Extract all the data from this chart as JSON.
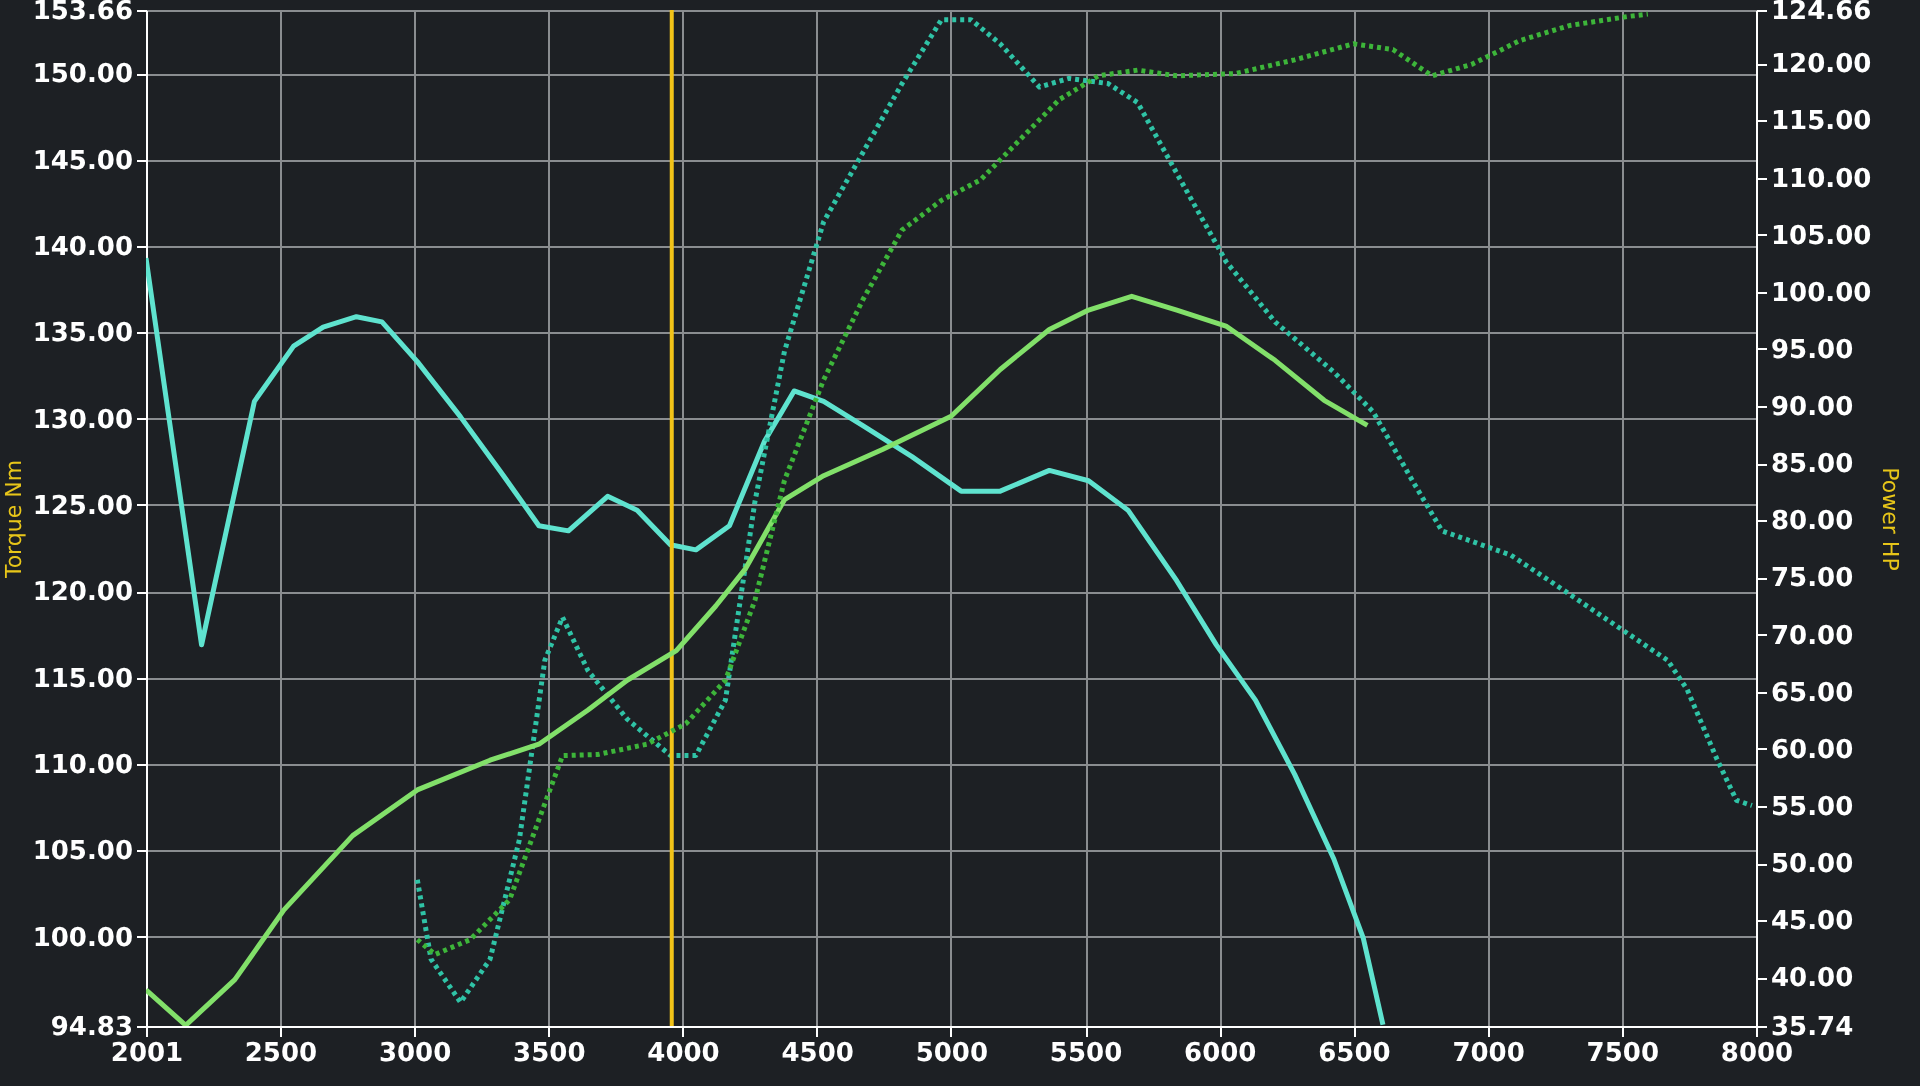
{
  "chart_data": {
    "type": "line",
    "ylabel": "Torque Nm",
    "y2label": "Power HP",
    "xlim": [
      2001,
      8000
    ],
    "xticks": [
      2001,
      2500,
      3000,
      3500,
      4000,
      4500,
      5000,
      5500,
      6000,
      6500,
      7000,
      7500,
      8000
    ],
    "ylim": [
      94.83,
      153.66
    ],
    "yticks": [
      94.83,
      {
        "value": 100,
        "label": "100.00"
      },
      {
        "value": 105,
        "label": "105.00"
      },
      {
        "value": 110,
        "label": "110.00"
      },
      {
        "value": 115,
        "label": "115.00"
      },
      {
        "value": 120,
        "label": "120.00"
      },
      {
        "value": 125,
        "label": "125.00"
      },
      {
        "value": 130,
        "label": "130.00"
      },
      {
        "value": 135,
        "label": "135.00"
      },
      {
        "value": 140,
        "label": "140.00"
      },
      {
        "value": 145,
        "label": "145.00"
      },
      {
        "value": 150,
        "label": "150.00"
      },
      153.66
    ],
    "y2lim": [
      35.74,
      124.66
    ],
    "y2ticks": [
      35.74,
      {
        "value": 40,
        "label": "40.00"
      },
      {
        "value": 45,
        "label": "45.00"
      },
      {
        "value": 50,
        "label": "50.00"
      },
      {
        "value": 55,
        "label": "55.00"
      },
      {
        "value": 60,
        "label": "60.00"
      },
      {
        "value": 65,
        "label": "65.00"
      },
      {
        "value": 70,
        "label": "70.00"
      },
      {
        "value": 75,
        "label": "75.00"
      },
      {
        "value": 80,
        "label": "80.00"
      },
      {
        "value": 85,
        "label": "85.00"
      },
      {
        "value": 90,
        "label": "90.00"
      },
      {
        "value": 95,
        "label": "95.00"
      },
      {
        "value": 100,
        "label": "100.00"
      },
      {
        "value": 105,
        "label": "105.00"
      },
      {
        "value": 110,
        "label": "110.00"
      },
      {
        "value": 115,
        "label": "115.00"
      },
      {
        "value": 120,
        "label": "120.00"
      },
      124.66
    ],
    "grid": true,
    "marker": "none",
    "ref_lines": [
      {
        "axis": "x",
        "value": 3960,
        "color": "#f2c318"
      }
    ],
    "series": [
      {
        "color": "#5fe3cf",
        "line_style": "solid",
        "x": [
          2001,
          2208,
          2405,
          2551,
          2661,
          2785,
          2880,
          3012,
          3173,
          3319,
          3465,
          3575,
          3721,
          3831,
          3955,
          4050,
          4175,
          4306,
          4416,
          4526,
          4672,
          4855,
          5038,
          5184,
          5367,
          5513,
          5660,
          5842,
          5989,
          6135,
          6281,
          6427,
          6537,
          6610
        ],
        "values": [
          139.3,
          116.9,
          131,
          134.2,
          135.3,
          135.9,
          135.6,
          133.3,
          130.1,
          127,
          123.8,
          123.5,
          125.5,
          124.7,
          122.7,
          122.4,
          123.8,
          128.7,
          131.6,
          131,
          129.6,
          127.8,
          125.8,
          125.8,
          127,
          126.4,
          124.7,
          120.6,
          116.9,
          113.7,
          109.4,
          104.5,
          99.9,
          94.9
        ]
      },
      {
        "color": "#82e06a",
        "line_style": "solid",
        "axis": "y2",
        "x": [
          2001,
          2149,
          2332,
          2515,
          2771,
          3012,
          3283,
          3465,
          3648,
          3794,
          3977,
          4124,
          4233,
          4380,
          4526,
          4745,
          5001,
          5184,
          5367,
          5513,
          5674,
          5842,
          6025,
          6208,
          6391,
          6552
        ],
        "values": [
          38.9,
          35.8,
          39.8,
          45.9,
          52.4,
          56.4,
          59,
          60.4,
          63.4,
          66,
          68.6,
          72.5,
          75.7,
          81.8,
          83.9,
          86.2,
          89.1,
          93.2,
          96.7,
          98.4,
          99.6,
          98.4,
          97,
          94,
          90.5,
          88.3
        ]
      },
      {
        "color": "#2fc3a6",
        "line_style": "dotted",
        "x": [
          3012,
          3063,
          3173,
          3283,
          3392,
          3487,
          3553,
          3648,
          3794,
          3955,
          4050,
          4160,
          4270,
          4380,
          4526,
          4672,
          4818,
          4965,
          5075,
          5184,
          5330,
          5440,
          5586,
          5696,
          5842,
          6025,
          6208,
          6427,
          6573,
          6720,
          6830,
          6940,
          7086,
          7232,
          7451,
          7671,
          7744,
          7854,
          7927,
          7985
        ],
        "values": [
          103.3,
          98.7,
          96.2,
          98.7,
          105.6,
          116,
          118.5,
          115.4,
          112.6,
          110.5,
          110.5,
          113.7,
          125.2,
          133.9,
          141.4,
          145.4,
          149.4,
          153.1,
          153.1,
          151.7,
          149.2,
          149.7,
          149.4,
          148.3,
          144.2,
          139.1,
          135.6,
          132.7,
          130.4,
          126.4,
          123.5,
          122.9,
          122.1,
          120.6,
          118.3,
          116,
          114.3,
          110.3,
          107.9,
          107.6
        ]
      },
      {
        "color": "#3db53a",
        "line_style": "dotted",
        "axis": "y2",
        "x": [
          3012,
          3078,
          3209,
          3356,
          3465,
          3553,
          3684,
          3867,
          4013,
          4160,
          4270,
          4380,
          4526,
          4672,
          4818,
          4965,
          5111,
          5257,
          5403,
          5550,
          5696,
          5842,
          6061,
          6281,
          6500,
          6647,
          6793,
          6940,
          7122,
          7305,
          7524,
          7597
        ],
        "values": [
          43.3,
          42,
          43.3,
          46.8,
          53.8,
          59.4,
          59.5,
          60.4,
          62.2,
          66,
          73,
          83.5,
          92.3,
          99.3,
          105.4,
          108,
          109.8,
          113.3,
          116.8,
          118.9,
          119.4,
          118.9,
          119.1,
          120.3,
          121.7,
          121.2,
          118.9,
          119.9,
          122,
          123.3,
          124.1,
          124.3
        ]
      }
    ]
  }
}
